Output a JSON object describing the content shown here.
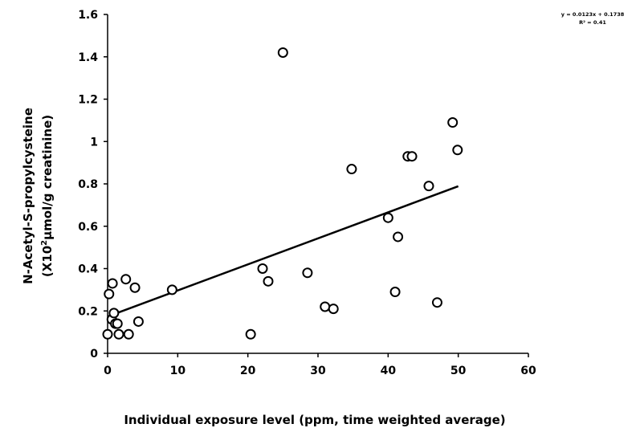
{
  "chart_data": {
    "type": "scatter",
    "xlabel": "Individual exposure level (ppm, time weighted average)",
    "ylabel_line1": "N-Acetyl-S-propylcysteine",
    "ylabel_line2_prefix": "(X10",
    "ylabel_line2_sup": "2",
    "ylabel_line2_suffix": "µmol/g creatinine)",
    "xlim": [
      0,
      60
    ],
    "ylim": [
      0,
      1.6
    ],
    "xticks": [
      "0",
      "10",
      "20",
      "30",
      "40",
      "50",
      "60"
    ],
    "yticks": [
      "0",
      "0.2",
      "0.4",
      "0.6",
      "0.8",
      "1",
      "1.2",
      "1.4",
      "1.6"
    ],
    "grid": false,
    "points": [
      {
        "x": 0,
        "y": 0.09
      },
      {
        "x": 0.2,
        "y": 0.28
      },
      {
        "x": 0.7,
        "y": 0.33
      },
      {
        "x": 0.6,
        "y": 0.16
      },
      {
        "x": 0.9,
        "y": 0.19
      },
      {
        "x": 1.1,
        "y": 0.14
      },
      {
        "x": 1.4,
        "y": 0.14
      },
      {
        "x": 1.6,
        "y": 0.09
      },
      {
        "x": 2.6,
        "y": 0.35
      },
      {
        "x": 3.0,
        "y": 0.09
      },
      {
        "x": 3.9,
        "y": 0.31
      },
      {
        "x": 4.4,
        "y": 0.15
      },
      {
        "x": 9.2,
        "y": 0.3
      },
      {
        "x": 20.4,
        "y": 0.09
      },
      {
        "x": 22.1,
        "y": 0.4
      },
      {
        "x": 22.9,
        "y": 0.34
      },
      {
        "x": 25.0,
        "y": 1.42
      },
      {
        "x": 28.5,
        "y": 0.38
      },
      {
        "x": 31.0,
        "y": 0.22
      },
      {
        "x": 32.2,
        "y": 0.21
      },
      {
        "x": 34.8,
        "y": 0.87
      },
      {
        "x": 40.0,
        "y": 0.64
      },
      {
        "x": 41.0,
        "y": 0.29
      },
      {
        "x": 41.4,
        "y": 0.55
      },
      {
        "x": 42.8,
        "y": 0.93
      },
      {
        "x": 43.4,
        "y": 0.93
      },
      {
        "x": 45.8,
        "y": 0.79
      },
      {
        "x": 47.0,
        "y": 0.24
      },
      {
        "x": 49.2,
        "y": 1.09
      },
      {
        "x": 49.9,
        "y": 0.96
      }
    ],
    "trendline": {
      "slope": 0.0123,
      "intercept": 0.1738,
      "x_from": 0,
      "x_to": 50
    },
    "equation_text": "y = 0.0123x + 0.1738",
    "r2_text": "R² = 0.41"
  }
}
